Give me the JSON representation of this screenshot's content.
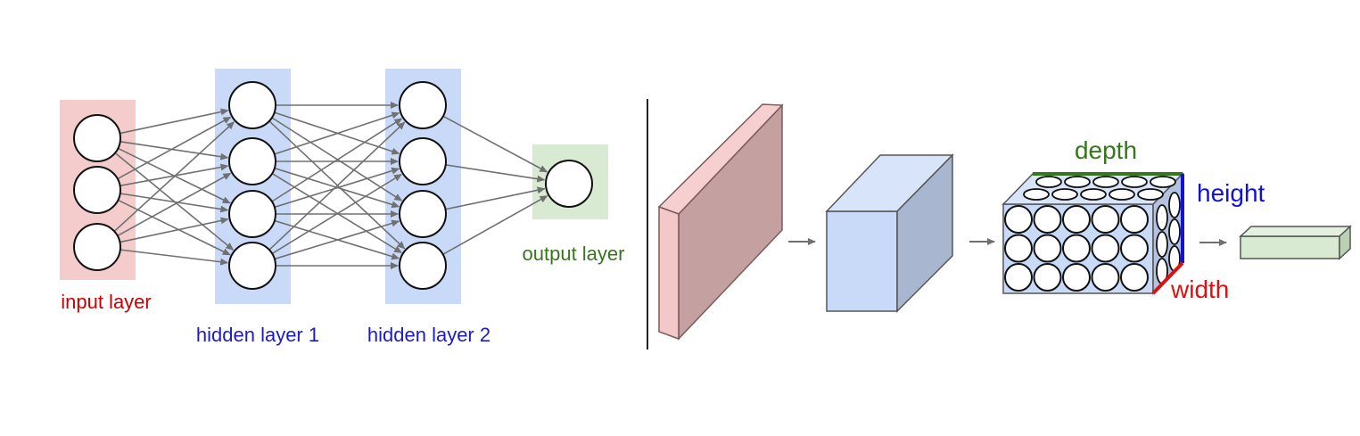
{
  "left_network": {
    "labels": {
      "input": "input layer",
      "hidden1": "hidden layer 1",
      "hidden2": "hidden layer 2",
      "output": "output layer"
    },
    "layer_sizes": [
      3,
      4,
      4,
      1
    ]
  },
  "right_network": {
    "labels": {
      "depth": "depth",
      "height": "height",
      "width": "width"
    },
    "volume_grid": {
      "columns": 5,
      "rows": 3,
      "depth_columns": 2
    }
  },
  "colors": {
    "input_band": "#f4cccc",
    "hidden_band": "#c9daf8",
    "output_band": "#d9ead3",
    "input_text": "#cc0000",
    "hidden_text": "#1c1cc9",
    "output_text": "#38761d",
    "edge": "#707070",
    "node_stroke": "#111111",
    "depth_line": "#38761d",
    "height_line": "#1111dd",
    "width_line": "#dd1111"
  }
}
